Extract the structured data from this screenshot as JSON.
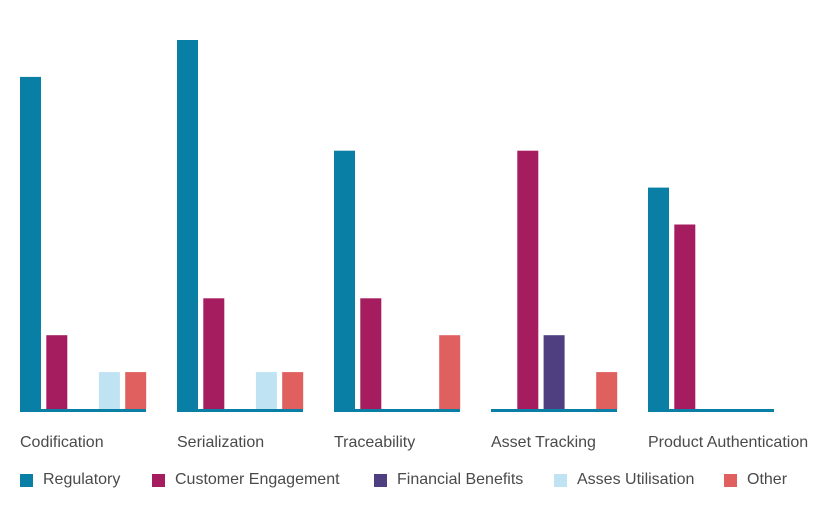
{
  "chart_data": {
    "type": "bar",
    "title": "",
    "xlabel": "",
    "ylabel": "",
    "ylim": [
      0,
      10
    ],
    "grid": false,
    "legend_position": "bottom",
    "categories": [
      "Codification",
      "Serialization",
      "Traceability",
      "Asset Tracking",
      "Product Authentication"
    ],
    "series": [
      {
        "name": "Regulatory",
        "color": "#0a7fa6",
        "values": [
          9,
          10,
          7,
          0,
          6
        ]
      },
      {
        "name": "Customer Engagement",
        "color": "#a51d5e",
        "values": [
          2,
          3,
          3,
          7,
          5
        ]
      },
      {
        "name": "Financial Benefits",
        "color": "#4f3f80",
        "values": [
          0,
          0,
          0,
          2,
          0
        ]
      },
      {
        "name": "Asses Utilisation",
        "color": "#bfe3f3",
        "values": [
          1,
          1,
          0,
          0,
          0
        ]
      },
      {
        "name": "Other",
        "color": "#e0605f",
        "values": [
          1,
          1,
          2,
          1,
          0
        ]
      }
    ],
    "axis_color": "#0a7fa6"
  }
}
